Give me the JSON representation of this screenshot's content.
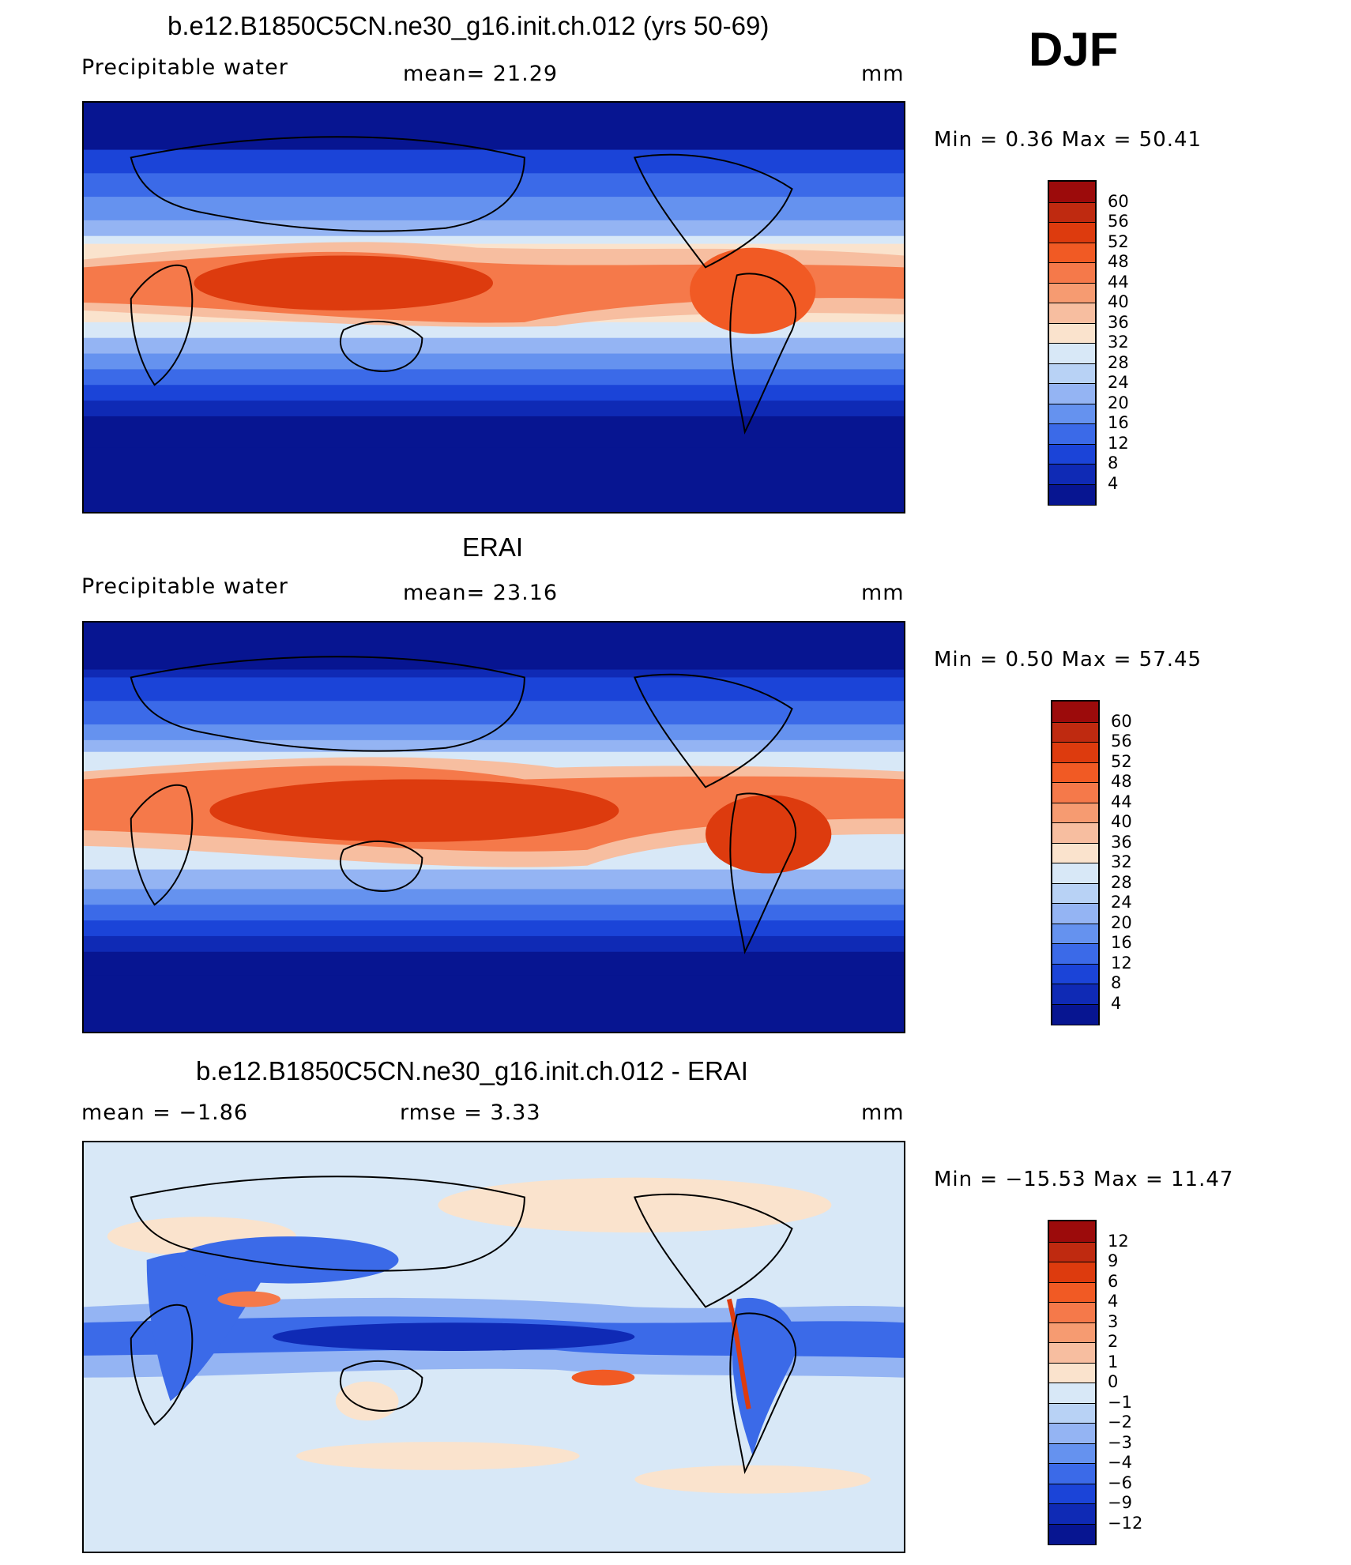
{
  "header": {
    "model_title": "b.e12.B1850C5CN.ne30_g16.init.ch.012 (yrs 50-69)",
    "season": "DJF"
  },
  "panels": [
    {
      "id": "model",
      "title": "b.e12.B1850C5CN.ne30_g16.init.ch.012 (yrs 50-69)",
      "left_label": "Precipitable  water",
      "center_label": "mean=   21.29",
      "units": "mm",
      "minmax": "Min  =     0.36  Max  =    50.41",
      "colorbar_labels": [
        "60",
        "56",
        "52",
        "48",
        "44",
        "40",
        "36",
        "32",
        "28",
        "24",
        "20",
        "16",
        "12",
        "8",
        "4"
      ]
    },
    {
      "id": "obs",
      "title": "ERAI",
      "left_label": "Precipitable  water",
      "center_label": "mean=   23.16",
      "units": "mm",
      "minmax": "Min  =     0.50  Max  =    57.45",
      "colorbar_labels": [
        "60",
        "56",
        "52",
        "48",
        "44",
        "40",
        "36",
        "32",
        "28",
        "24",
        "20",
        "16",
        "12",
        "8",
        "4"
      ]
    },
    {
      "id": "diff",
      "title": "b.e12.B1850C5CN.ne30_g16.init.ch.012 - ERAI",
      "left_label": "mean  =    −1.86",
      "center_label": "rmse  =     3.33",
      "units": "mm",
      "minmax": "Min  =  −15.53  Max  =    11.47",
      "colorbar_labels": [
        "12",
        "9",
        "6",
        "4",
        "3",
        "2",
        "1",
        "0",
        "−1",
        "−2",
        "−3",
        "−4",
        "−6",
        "−9",
        "−12"
      ]
    }
  ],
  "colors": {
    "scale": [
      "#9c0b0b",
      "#bf2a10",
      "#dd3b0e",
      "#f15a24",
      "#f5794a",
      "#f69b71",
      "#f7bea0",
      "#fae3cd",
      "#d8e8f7",
      "#b8d2f5",
      "#94b4f3",
      "#6592ef",
      "#3b6ae8",
      "#1b44d8",
      "#0f2ab5",
      "#071591"
    ]
  }
}
